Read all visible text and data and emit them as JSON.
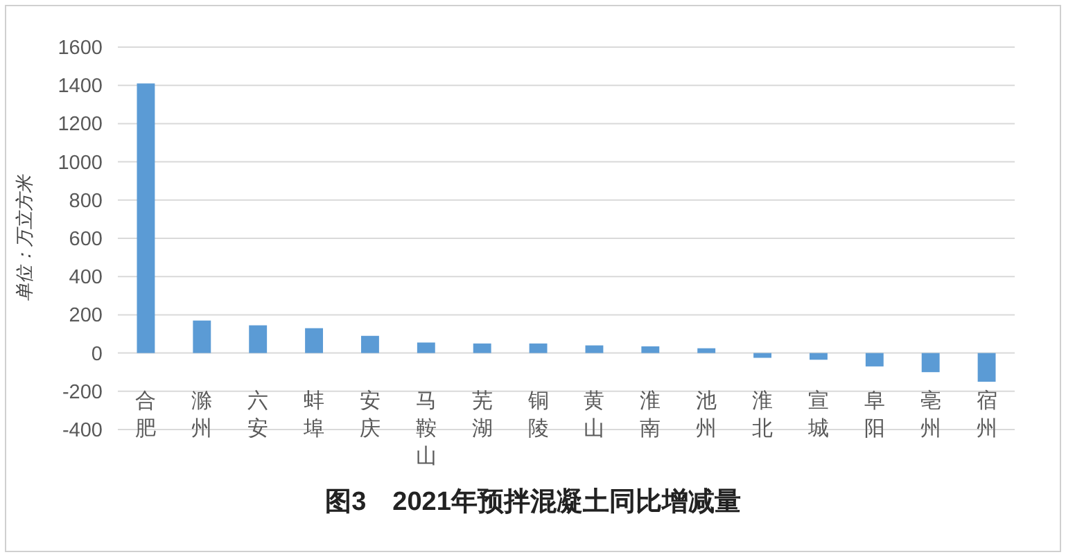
{
  "chart_data": {
    "type": "bar",
    "title": "图3　2021年预拌混凝土同比增减量",
    "ylabel": "单位：万立方米",
    "categories": [
      "合肥",
      "滁州",
      "六安",
      "蚌埠",
      "安庆",
      "马鞍山",
      "芜湖",
      "铜陵",
      "黄山",
      "淮南",
      "池州",
      "淮北",
      "宣城",
      "阜阳",
      "亳州",
      "宿州"
    ],
    "values": [
      1410,
      170,
      145,
      130,
      90,
      55,
      50,
      50,
      40,
      35,
      25,
      -25,
      -35,
      -70,
      -100,
      -150
    ],
    "color": "#5b9bd5",
    "ylim": [
      -400,
      1600
    ],
    "yticks": [
      -400,
      -200,
      0,
      200,
      400,
      600,
      800,
      1000,
      1200,
      1400,
      1600
    ],
    "grid": "y"
  }
}
